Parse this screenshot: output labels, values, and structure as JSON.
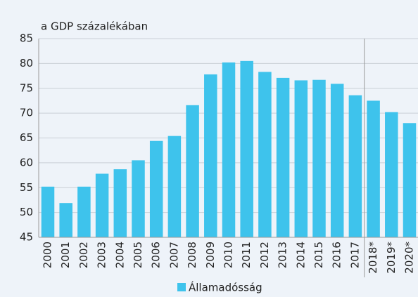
{
  "chart_data": {
    "type": "bar",
    "y_label": "a GDP százalékában",
    "categories": [
      "2000",
      "2001",
      "2002",
      "2003",
      "2004",
      "2005",
      "2006",
      "2007",
      "2008",
      "2009",
      "2010",
      "2011",
      "2012",
      "2013",
      "2014",
      "2015",
      "2016",
      "2017",
      "2018*",
      "2019*",
      "2020*"
    ],
    "series": [
      {
        "name": "Államadósság",
        "color": "#3ec3ec",
        "values": [
          55.2,
          51.9,
          55.2,
          57.8,
          58.7,
          60.5,
          64.4,
          65.4,
          71.6,
          77.8,
          80.2,
          80.5,
          78.3,
          77.1,
          76.6,
          76.7,
          75.9,
          73.6,
          72.5,
          70.2,
          68.0
        ]
      }
    ],
    "ylim": [
      45,
      85
    ],
    "yticks": [
      45,
      50,
      55,
      60,
      65,
      70,
      75,
      80,
      85
    ],
    "grid": true,
    "legend": "bottom"
  }
}
